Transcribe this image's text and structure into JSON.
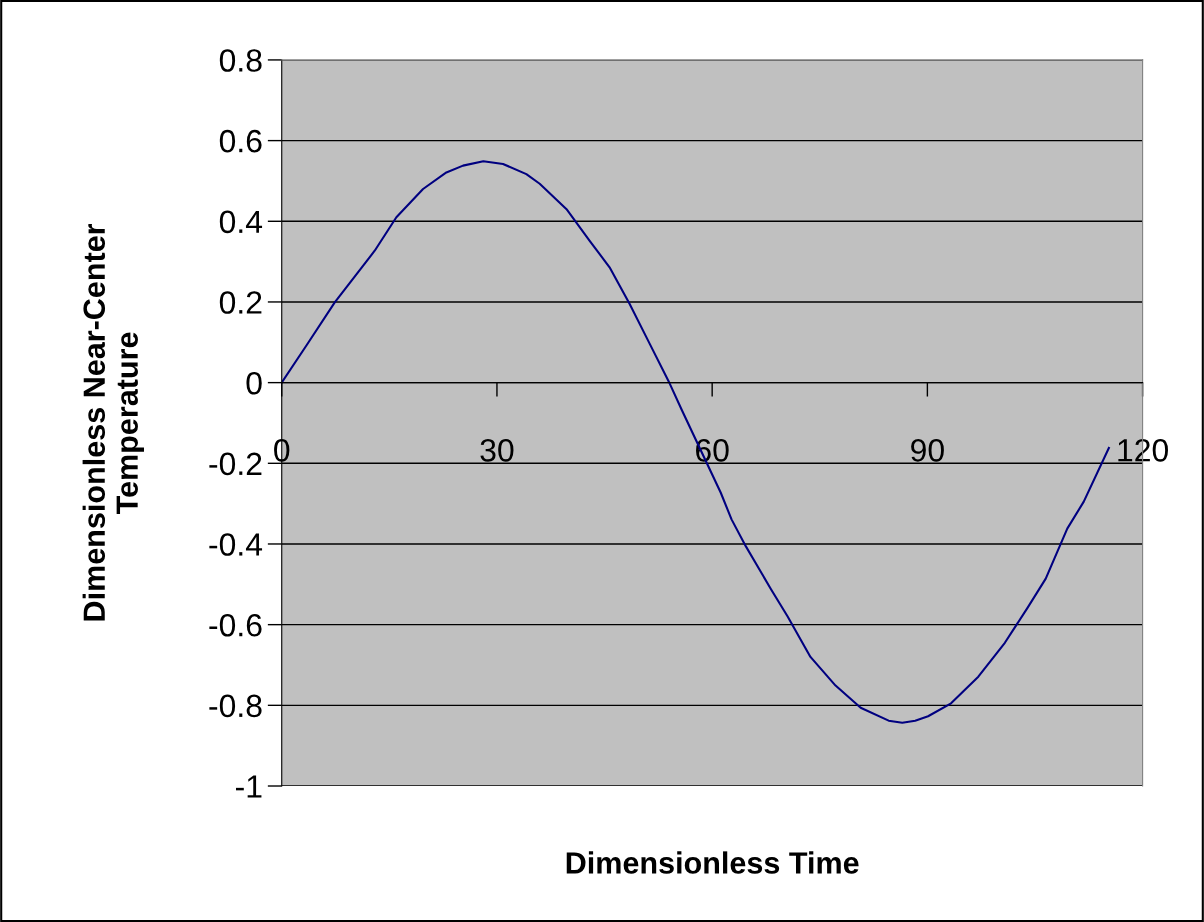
{
  "chart_data": {
    "type": "line",
    "xlabel": "Dimensionless Time",
    "ylabel": "Dimensionless Near-Center\nTemperature",
    "series": [
      {
        "color": "#000080",
        "x": [
          0,
          3.44,
          7.39,
          12.96,
          15.98,
          19.7,
          22.95,
          25.27,
          28.1,
          30.85,
          34.1,
          35.96,
          39.7,
          42.9,
          45.7,
          48.5,
          51.3,
          54.1,
          55.8,
          61.2,
          62.7,
          64.7,
          68.2,
          70.5,
          73.7,
          77.2,
          80.7,
          84.6,
          86.5,
          88.3,
          90.1,
          93.3,
          97.1,
          100.8,
          104.0,
          106.5,
          109.5,
          111.8,
          115.3
        ],
        "values": [
          0,
          0.092,
          0.199,
          0.327,
          0.41,
          0.48,
          0.521,
          0.538,
          0.549,
          0.542,
          0.517,
          0.493,
          0.43,
          0.352,
          0.286,
          0.195,
          0.096,
          -0.003,
          -0.069,
          -0.273,
          -0.339,
          -0.406,
          -0.512,
          -0.579,
          -0.68,
          -0.751,
          -0.806,
          -0.838,
          -0.843,
          -0.838,
          -0.827,
          -0.795,
          -0.729,
          -0.645,
          -0.557,
          -0.486,
          -0.362,
          -0.295,
          -0.162
        ]
      }
    ],
    "xlim": [
      0,
      120
    ],
    "xticks": [
      0,
      30,
      60,
      90,
      120
    ],
    "ylim": [
      -1,
      0.8
    ],
    "yticks": [
      -1,
      -0.8,
      -0.6,
      -0.4,
      -0.2,
      0,
      0.2,
      0.4,
      0.6,
      0.8
    ],
    "grid": "y",
    "legend": false,
    "marker": "none",
    "line_style": "solid"
  }
}
